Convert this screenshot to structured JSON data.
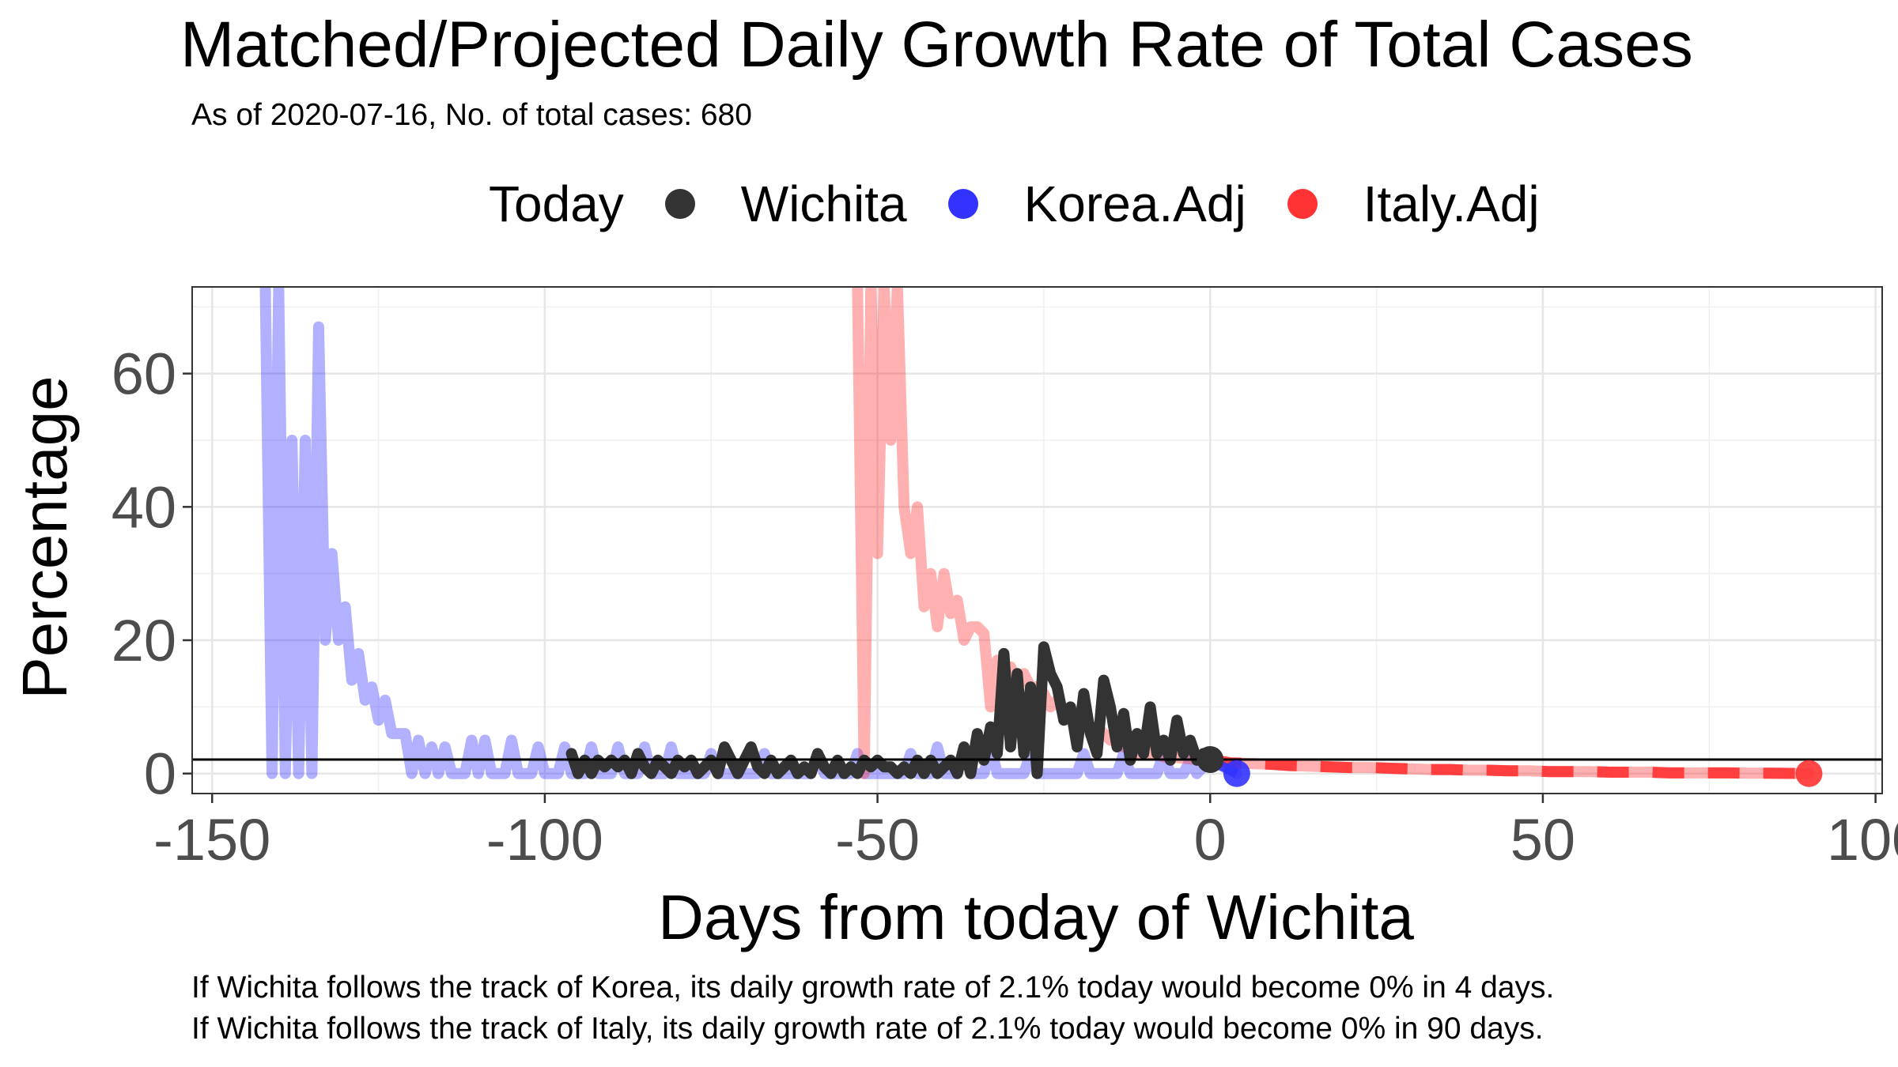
{
  "chart_data": {
    "type": "line",
    "title": "Matched/Projected Daily Growth Rate of Total Cases",
    "subtitle": "As of 2020-07-16, No. of total cases: 680",
    "xlabel": "Days from today of Wichita",
    "ylabel": "Percentage",
    "xlim": [
      -153,
      101
    ],
    "ylim": [
      -3,
      73
    ],
    "x_ticks": [
      -150,
      -100,
      -50,
      0,
      50,
      100
    ],
    "x_tick_labels": [
      "-150",
      "-100",
      "-50",
      "0",
      "50",
      "100"
    ],
    "y_ticks": [
      0,
      20,
      40,
      60
    ],
    "y_tick_labels": [
      "0",
      "20",
      "40",
      "60"
    ],
    "grid": true,
    "legend": {
      "title": "Today",
      "position": "top",
      "entries": [
        "Wichita",
        "Korea.Adj",
        "Italy.Adj"
      ]
    },
    "reference_line_y": 2.1,
    "series": [
      {
        "name": "Korea.Adj",
        "color": "#3333ff",
        "past_points": [
          [
            -142,
            73
          ],
          [
            -141,
            0
          ],
          [
            -140,
            73
          ],
          [
            -139,
            0
          ],
          [
            -138,
            50
          ],
          [
            -137,
            0
          ],
          [
            -136,
            50
          ],
          [
            -135,
            0
          ],
          [
            -134,
            67
          ],
          [
            -133,
            20
          ],
          [
            -132,
            33
          ],
          [
            -131,
            20
          ],
          [
            -130,
            25
          ],
          [
            -129,
            14
          ],
          [
            -128,
            18
          ],
          [
            -127,
            11
          ],
          [
            -126,
            13
          ],
          [
            -125,
            8
          ],
          [
            -124,
            11
          ],
          [
            -123,
            6
          ],
          [
            -122,
            6
          ],
          [
            -121,
            6
          ],
          [
            -120,
            0
          ],
          [
            -119,
            5
          ],
          [
            -118,
            0
          ],
          [
            -117,
            4
          ],
          [
            -116,
            0
          ],
          [
            -115,
            4
          ],
          [
            -114,
            0
          ],
          [
            -112,
            0
          ],
          [
            -111,
            5
          ],
          [
            -110,
            0
          ],
          [
            -109,
            5
          ],
          [
            -108,
            0
          ],
          [
            -106,
            0
          ],
          [
            -105,
            5
          ],
          [
            -104,
            0
          ],
          [
            -102,
            0
          ],
          [
            -101,
            4
          ],
          [
            -100,
            0
          ],
          [
            -98,
            0
          ],
          [
            -97,
            4
          ],
          [
            -96,
            0
          ],
          [
            -94,
            0
          ],
          [
            -93,
            4
          ],
          [
            -92,
            0
          ],
          [
            -90,
            0
          ],
          [
            -89,
            4
          ],
          [
            -88,
            0
          ],
          [
            -86,
            0
          ],
          [
            -85,
            4
          ],
          [
            -84,
            0
          ],
          [
            -82,
            0
          ],
          [
            -81,
            4
          ],
          [
            -80,
            0
          ],
          [
            -76,
            0
          ],
          [
            -75,
            3
          ],
          [
            -74,
            0
          ],
          [
            -68,
            0
          ],
          [
            -67,
            3
          ],
          [
            -66,
            0
          ],
          [
            -60,
            0
          ],
          [
            -59,
            3
          ],
          [
            -58,
            0
          ],
          [
            -54,
            0
          ],
          [
            -53,
            3
          ],
          [
            -52,
            0
          ],
          [
            -46,
            0
          ],
          [
            -45,
            3
          ],
          [
            -44,
            0
          ],
          [
            -42,
            0
          ],
          [
            -41,
            4
          ],
          [
            -40,
            0
          ],
          [
            -38,
            0
          ],
          [
            -37,
            4
          ],
          [
            -36,
            0
          ],
          [
            -34,
            0
          ],
          [
            -33,
            4
          ],
          [
            -32,
            0
          ],
          [
            -28,
            0
          ],
          [
            -27,
            3
          ],
          [
            -26,
            0
          ],
          [
            -20,
            0
          ],
          [
            -19,
            3
          ],
          [
            -18,
            0
          ],
          [
            -14,
            0
          ],
          [
            -13,
            3
          ],
          [
            -12,
            0
          ],
          [
            -8,
            0
          ],
          [
            -7,
            3
          ],
          [
            -6,
            0
          ],
          [
            -4,
            0
          ],
          [
            -3,
            2
          ],
          [
            -2,
            0
          ],
          [
            0,
            2.1
          ]
        ],
        "projection": [
          [
            0,
            2.1
          ],
          [
            1,
            1.5
          ],
          [
            2,
            1.0
          ],
          [
            3,
            0.5
          ],
          [
            4,
            0
          ]
        ],
        "endpoint": [
          4,
          0
        ]
      },
      {
        "name": "Italy.Adj",
        "color": "#ff3333",
        "past_points": [
          [
            -53,
            73
          ],
          [
            -52,
            0
          ],
          [
            -51,
            73
          ],
          [
            -50,
            33
          ],
          [
            -49,
            73
          ],
          [
            -48,
            50
          ],
          [
            -47,
            73
          ],
          [
            -46,
            40
          ],
          [
            -45,
            33
          ],
          [
            -44,
            40
          ],
          [
            -43,
            25
          ],
          [
            -42,
            30
          ],
          [
            -41,
            22
          ],
          [
            -40,
            30
          ],
          [
            -39,
            24
          ],
          [
            -38,
            26
          ],
          [
            -37,
            20
          ],
          [
            -36,
            22
          ],
          [
            -35,
            22
          ],
          [
            -34,
            21
          ],
          [
            -33,
            10
          ],
          [
            -32,
            17
          ],
          [
            -31,
            15
          ],
          [
            -30,
            16
          ],
          [
            -29,
            14
          ],
          [
            -28,
            15
          ],
          [
            -27,
            13
          ],
          [
            -26,
            13
          ],
          [
            -25,
            12
          ],
          [
            -24,
            10
          ],
          [
            -23,
            11
          ],
          [
            -22,
            9
          ],
          [
            -21,
            9
          ],
          [
            -20,
            8
          ],
          [
            -19,
            8
          ],
          [
            -18,
            7
          ],
          [
            -17,
            7
          ],
          [
            -16,
            6
          ],
          [
            -15,
            5
          ],
          [
            -14,
            5
          ],
          [
            -13,
            4
          ],
          [
            -12,
            4
          ],
          [
            -11,
            3
          ],
          [
            -10,
            4
          ],
          [
            -9,
            3
          ],
          [
            -8,
            3
          ],
          [
            -7,
            2.5
          ],
          [
            -6,
            2.5
          ],
          [
            -5,
            2.4
          ],
          [
            -4,
            2.3
          ],
          [
            -3,
            2.2
          ],
          [
            -2,
            2.1
          ],
          [
            -1,
            2.1
          ],
          [
            0,
            2.1
          ]
        ],
        "projection": [
          [
            0,
            2.1
          ],
          [
            3,
            1.6
          ],
          [
            6,
            1.5
          ],
          [
            9,
            1.4
          ],
          [
            12,
            1.2
          ],
          [
            15,
            1.1
          ],
          [
            18,
            1.0
          ],
          [
            21,
            0.9
          ],
          [
            24,
            0.9
          ],
          [
            27,
            0.8
          ],
          [
            30,
            0.7
          ],
          [
            33,
            0.6
          ],
          [
            36,
            0.6
          ],
          [
            39,
            0.5
          ],
          [
            42,
            0.5
          ],
          [
            45,
            0.4
          ],
          [
            48,
            0.4
          ],
          [
            51,
            0.3
          ],
          [
            54,
            0.3
          ],
          [
            57,
            0.3
          ],
          [
            60,
            0.2
          ],
          [
            63,
            0.2
          ],
          [
            66,
            0.2
          ],
          [
            69,
            0.1
          ],
          [
            72,
            0.1
          ],
          [
            75,
            0.1
          ],
          [
            78,
            0.1
          ],
          [
            81,
            0.05
          ],
          [
            84,
            0.05
          ],
          [
            87,
            0.02
          ],
          [
            90,
            0
          ]
        ],
        "endpoint": [
          90,
          0
        ]
      },
      {
        "name": "Wichita",
        "color": "#333333",
        "points": [
          [
            -96,
            3
          ],
          [
            -95,
            0
          ],
          [
            -94,
            2
          ],
          [
            -93,
            0
          ],
          [
            -92,
            2
          ],
          [
            -91,
            1
          ],
          [
            -90,
            2
          ],
          [
            -89,
            1
          ],
          [
            -88,
            2
          ],
          [
            -87,
            0
          ],
          [
            -86,
            3
          ],
          [
            -85,
            1
          ],
          [
            -84,
            0
          ],
          [
            -83,
            2
          ],
          [
            -82,
            1
          ],
          [
            -81,
            0
          ],
          [
            -80,
            2
          ],
          [
            -79,
            1
          ],
          [
            -78,
            2
          ],
          [
            -77,
            0
          ],
          [
            -76,
            1
          ],
          [
            -75,
            2
          ],
          [
            -74,
            0
          ],
          [
            -73,
            4
          ],
          [
            -72,
            2
          ],
          [
            -71,
            0
          ],
          [
            -70,
            2
          ],
          [
            -69,
            4
          ],
          [
            -68,
            1
          ],
          [
            -67,
            0
          ],
          [
            -66,
            2
          ],
          [
            -65,
            0
          ],
          [
            -64,
            1
          ],
          [
            -63,
            2
          ],
          [
            -62,
            0
          ],
          [
            -61,
            1
          ],
          [
            -60,
            0
          ],
          [
            -59,
            3
          ],
          [
            -58,
            1
          ],
          [
            -57,
            0
          ],
          [
            -56,
            2
          ],
          [
            -55,
            0
          ],
          [
            -54,
            1
          ],
          [
            -53,
            0
          ],
          [
            -52,
            2
          ],
          [
            -51,
            1
          ],
          [
            -50,
            2
          ],
          [
            -49,
            1
          ],
          [
            -48,
            1
          ],
          [
            -47,
            0
          ],
          [
            -46,
            1
          ],
          [
            -45,
            0
          ],
          [
            -44,
            2
          ],
          [
            -43,
            0
          ],
          [
            -42,
            2
          ],
          [
            -41,
            0
          ],
          [
            -40,
            1
          ],
          [
            -39,
            2
          ],
          [
            -38,
            0
          ],
          [
            -37,
            4
          ],
          [
            -36,
            0
          ],
          [
            -35,
            6
          ],
          [
            -34,
            2
          ],
          [
            -33,
            7
          ],
          [
            -32,
            3
          ],
          [
            -31,
            18
          ],
          [
            -30,
            4
          ],
          [
            -29,
            15
          ],
          [
            -28,
            3
          ],
          [
            -27,
            13
          ],
          [
            -26,
            0
          ],
          [
            -25,
            19
          ],
          [
            -24,
            15
          ],
          [
            -23,
            13
          ],
          [
            -22,
            8
          ],
          [
            -21,
            10
          ],
          [
            -20,
            4
          ],
          [
            -19,
            12
          ],
          [
            -18,
            6
          ],
          [
            -17,
            3
          ],
          [
            -16,
            14
          ],
          [
            -15,
            10
          ],
          [
            -14,
            4
          ],
          [
            -13,
            9
          ],
          [
            -12,
            2
          ],
          [
            -11,
            6
          ],
          [
            -10,
            3
          ],
          [
            -9,
            10
          ],
          [
            -8,
            3
          ],
          [
            -7,
            5
          ],
          [
            -6,
            2
          ],
          [
            -5,
            8
          ],
          [
            -4,
            3
          ],
          [
            -3,
            5
          ],
          [
            -2,
            2
          ],
          [
            -1,
            3
          ],
          [
            0,
            2.1
          ]
        ],
        "endpoint": [
          0,
          2.1
        ]
      }
    ]
  },
  "footer": {
    "korea_note": "If Wichita follows the track of Korea, its daily growth rate of 2.1% today would become 0% in 4 days.",
    "italy_note": "If Wichita follows the track of Italy, its daily growth rate of 2.1% today would become 0% in 90 days."
  }
}
